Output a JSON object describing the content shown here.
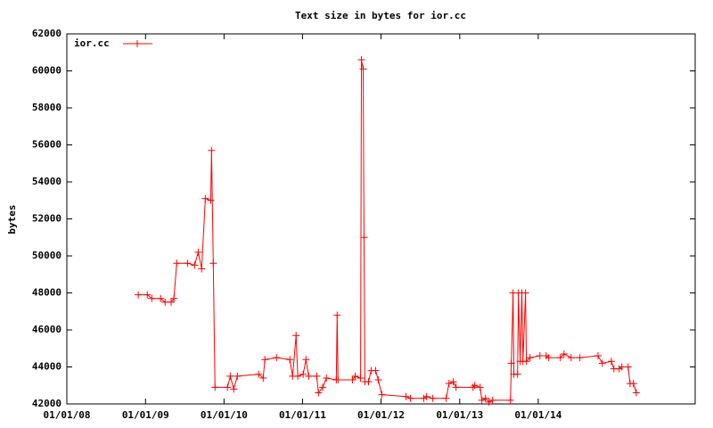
{
  "chart_data": {
    "type": "line",
    "title": "Text size in bytes for ior.cc",
    "y_label": "bytes",
    "x": [
      "2008-11-28",
      "2009-01-09",
      "2009-01-30",
      "2009-03-12",
      "2009-04-02",
      "2009-04-30",
      "2009-05-13",
      "2009-05-26",
      "2009-07-15",
      "2009-08-17",
      "2009-09-03",
      "2009-09-19",
      "2009-10-06",
      "2009-10-31",
      "2009-11-04",
      "2009-11-12",
      "2009-11-20",
      "2010-01-17",
      "2010-01-30",
      "2010-02-15",
      "2010-03-04",
      "2010-06-11",
      "2010-07-02",
      "2010-07-10",
      "2010-09-02",
      "2010-11-03",
      "2010-11-16",
      "2010-12-02",
      "2010-12-10",
      "2011-01-04",
      "2011-01-17",
      "2011-01-30",
      "2011-03-08",
      "2011-03-16",
      "2011-04-05",
      "2011-04-22",
      "2011-06-07",
      "2011-06-11",
      "2011-06-15",
      "2011-08-21",
      "2011-09-03",
      "2011-09-28",
      "2011-10-02",
      "2011-10-10",
      "2011-10-14",
      "2011-10-18",
      "2011-11-04",
      "2011-11-16",
      "2011-12-07",
      "2011-12-19",
      "2012-01-05",
      "2012-04-26",
      "2012-05-17",
      "2012-07-18",
      "2012-07-31",
      "2012-08-29",
      "2012-10-30",
      "2012-11-12",
      "2012-12-02",
      "2012-12-15",
      "2013-03-04",
      "2013-03-12",
      "2013-04-06",
      "2013-04-14",
      "2013-05-01",
      "2013-05-17",
      "2013-06-03",
      "2013-08-25",
      "2013-08-29",
      "2013-09-06",
      "2013-09-10",
      "2013-09-27",
      "2013-10-01",
      "2013-10-09",
      "2013-10-17",
      "2013-10-22",
      "2013-11-03",
      "2013-11-07",
      "2013-11-24",
      "2014-01-09",
      "2014-02-07",
      "2014-02-19",
      "2014-04-14",
      "2014-05-01",
      "2014-06-03",
      "2014-07-14",
      "2014-10-06",
      "2014-10-26",
      "2014-12-07",
      "2014-12-19",
      "2015-01-13",
      "2015-01-25",
      "2015-02-23",
      "2015-03-04",
      "2015-03-20",
      "2015-04-02"
    ],
    "series": [
      {
        "name": "ior.cc",
        "color": "#ff0000",
        "values": [
          47900,
          47900,
          47700,
          47700,
          47500,
          47500,
          47700,
          49600,
          49600,
          49500,
          50200,
          49300,
          53100,
          53000,
          55700,
          49600,
          42900,
          42900,
          43500,
          42800,
          43500,
          43600,
          43400,
          44400,
          44500,
          44400,
          43500,
          45700,
          43500,
          43600,
          44400,
          43500,
          43500,
          42600,
          42900,
          43400,
          43300,
          46800,
          43300,
          43300,
          43500,
          43400,
          60600,
          60100,
          51000,
          43200,
          43200,
          43800,
          43800,
          43300,
          42500,
          42400,
          42300,
          42300,
          42400,
          42300,
          42300,
          43100,
          43200,
          42900,
          42900,
          43000,
          42900,
          42200,
          42300,
          42100,
          42200,
          42200,
          44200,
          48000,
          43600,
          43600,
          48000,
          44300,
          48000,
          44300,
          48000,
          44300,
          44500,
          44600,
          44600,
          44500,
          44500,
          44700,
          44500,
          44500,
          44600,
          44200,
          44300,
          43900,
          43900,
          44000,
          44000,
          43100,
          43100,
          42600
        ]
      }
    ],
    "xlim": [
      "2008-01-01",
      "2016-01-01"
    ],
    "xticks": [
      {
        "value": "2008-01-01",
        "label": "01/01/08"
      },
      {
        "value": "2009-01-01",
        "label": "01/01/09"
      },
      {
        "value": "2010-01-01",
        "label": "01/01/10"
      },
      {
        "value": "2011-01-01",
        "label": "01/01/11"
      },
      {
        "value": "2012-01-01",
        "label": "01/01/12"
      },
      {
        "value": "2013-01-01",
        "label": "01/01/13"
      },
      {
        "value": "2014-01-01",
        "label": "01/01/14"
      }
    ],
    "ylim": [
      42000,
      62000
    ],
    "yticks": [
      42000,
      44000,
      46000,
      48000,
      50000,
      52000,
      54000,
      56000,
      58000,
      60000,
      62000
    ],
    "grid": false,
    "legend": "top-left"
  }
}
